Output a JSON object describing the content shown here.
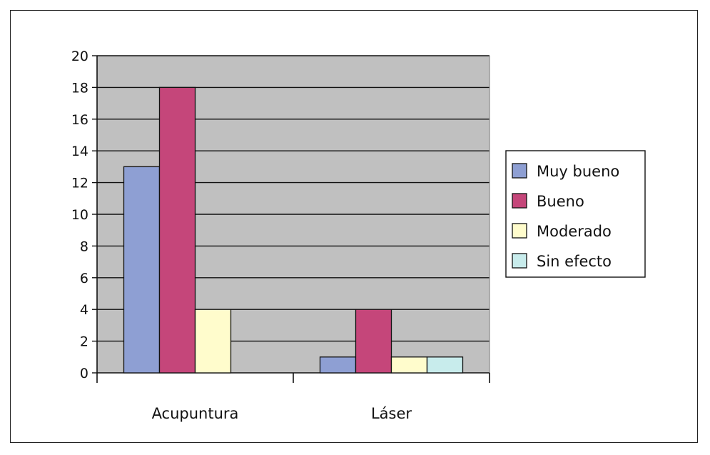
{
  "chart_data": {
    "type": "bar",
    "title": "",
    "xlabel": "",
    "ylabel": "",
    "categories": [
      "Acupuntura",
      "Láser"
    ],
    "series": [
      {
        "name": "Muy bueno",
        "values": [
          13,
          1
        ],
        "color": "#8e9fd3"
      },
      {
        "name": "Bueno",
        "values": [
          18,
          4
        ],
        "color": "#c5467a"
      },
      {
        "name": "Moderado",
        "values": [
          4,
          1
        ],
        "color": "#fffccc"
      },
      {
        "name": "Sin efecto",
        "values": [
          0,
          1
        ],
        "color": "#c8ecec"
      }
    ],
    "ylim": [
      0,
      20
    ],
    "yticks": [
      "0",
      "2",
      "4",
      "6",
      "8",
      "10",
      "12",
      "14",
      "16",
      "18",
      "20"
    ],
    "grid": true,
    "plot_background": "#c0c0c0",
    "legend_position": "right"
  }
}
